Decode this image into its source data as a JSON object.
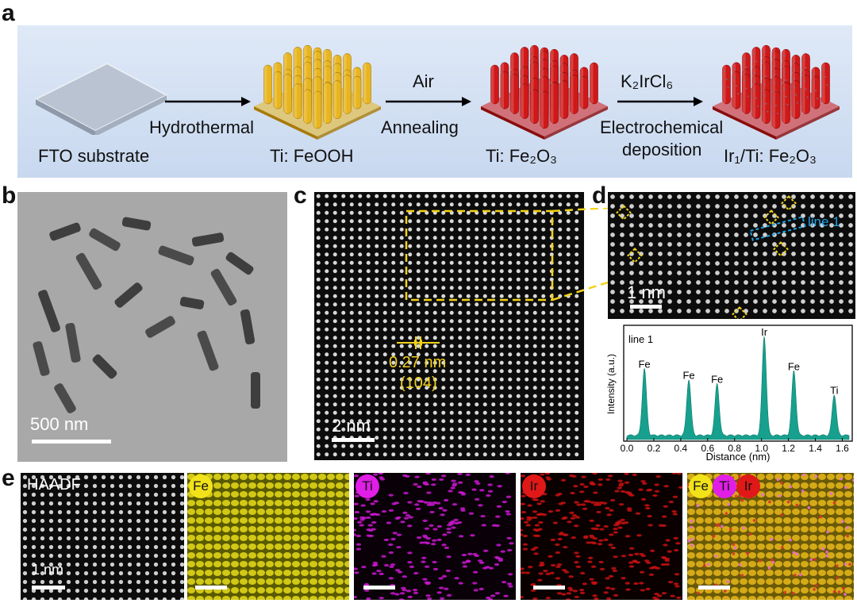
{
  "panels": {
    "a": "a",
    "b": "b",
    "c": "c",
    "d": "d",
    "e": "e"
  },
  "scheme": {
    "stage1": "FTO substrate",
    "arrow1_below": "Hydrothermal",
    "stage2": "Ti: FeOOH",
    "arrow2_above": "Air",
    "arrow2_below": "Annealing",
    "stage3": "Ti: Fe₂O₃",
    "arrow3_above": "K₂IrCl₆",
    "arrow3_below_1": "Electrochemical",
    "arrow3_below_2": "deposition",
    "stage4": "Ir₁/Ti: Fe₂O₃",
    "colors": {
      "feooh": "#e8b51e",
      "fe2o3": "#d01818",
      "substrate": "#9aa6b8"
    }
  },
  "tem": {
    "scalebar": "500 nm"
  },
  "haadf_c": {
    "scalebar": "2 nm",
    "spacing": "0.27 nm",
    "plane": "(104)"
  },
  "haadf_d": {
    "scalebar": "1 nm",
    "line_label": "line 1"
  },
  "chart_data": {
    "type": "area",
    "title": "line 1",
    "xlabel": "Distance (nm)",
    "ylabel": "Intensity (a.u.)",
    "xlim": [
      0.0,
      1.65
    ],
    "xticks": [
      "0.0",
      "0.2",
      "0.4",
      "0.6",
      "0.8",
      "1.0",
      "1.2",
      "1.4",
      "1.6"
    ],
    "color": "#17a08e",
    "peaks": [
      {
        "label": "Fe",
        "x": 0.13,
        "y": 0.62
      },
      {
        "label": "Fe",
        "x": 0.46,
        "y": 0.52
      },
      {
        "label": "Fe",
        "x": 0.67,
        "y": 0.48
      },
      {
        "label": "Ir",
        "x": 1.02,
        "y": 0.92
      },
      {
        "label": "Fe",
        "x": 1.24,
        "y": 0.6
      },
      {
        "label": "Ti",
        "x": 1.54,
        "y": 0.38
      }
    ]
  },
  "maps": {
    "haadf": "HAADF",
    "scalebar": "1 nm",
    "fe": "Fe",
    "ti": "Ti",
    "ir": "Ir",
    "colors": {
      "fe": "#f2e21a",
      "ti": "#e01ee6",
      "ir": "#e01818"
    }
  }
}
